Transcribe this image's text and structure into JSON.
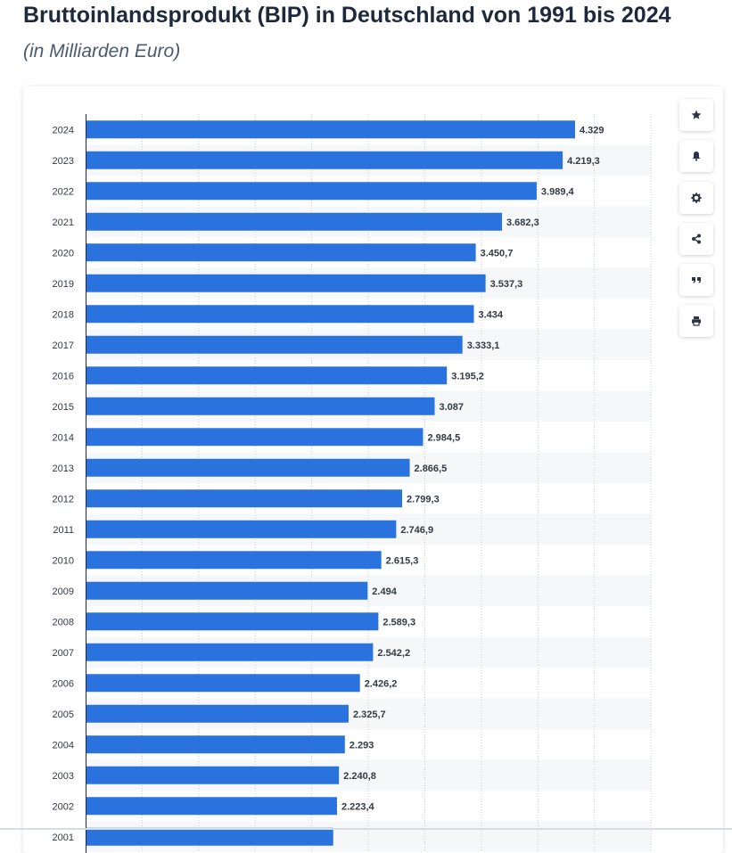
{
  "chart_data": {
    "type": "bar",
    "orientation": "horizontal",
    "title": "Bruttoinlandsprodukt (BIP) in Deutschland von 1991 bis 2024",
    "subtitle": "(in Milliarden Euro)",
    "xlabel": "",
    "ylabel": "",
    "xlim": [
      0,
      5000
    ],
    "grid": true,
    "categories": [
      "2024",
      "2023",
      "2022",
      "2021",
      "2020",
      "2019",
      "2018",
      "2017",
      "2016",
      "2015",
      "2014",
      "2013",
      "2012",
      "2011",
      "2010",
      "2009",
      "2008",
      "2007",
      "2006",
      "2005",
      "2004",
      "2003",
      "2002",
      "2001"
    ],
    "values": [
      4329,
      4219.3,
      3989.4,
      3682.3,
      3450.7,
      3537.3,
      3434,
      3333.1,
      3195.2,
      3087,
      2984.5,
      2866.5,
      2799.3,
      2746.9,
      2615.3,
      2494,
      2589.3,
      2542.2,
      2426.2,
      2325.7,
      2293,
      2240.8,
      2223.4,
      2190
    ],
    "value_labels": [
      "4.329",
      "4.219,3",
      "3.989,4",
      "3.682,3",
      "3.450,7",
      "3.537,3",
      "3.434",
      "3.333,1",
      "3.195,2",
      "3.087",
      "2.984,5",
      "2.866,5",
      "2.799,3",
      "2.746,9",
      "2.615,3",
      "2.494",
      "2.589,3",
      "2.542,2",
      "2.426,2",
      "2.325,7",
      "2.293",
      "2.240,8",
      "2.223,4",
      ""
    ],
    "bar_color": "#2a72dd",
    "stripe_color": "#f6f7f9",
    "grid_color": "#c9ced6",
    "axis_color": "#1e2a3c"
  },
  "toolbar": [
    {
      "name": "favorite-button",
      "icon": "star-icon"
    },
    {
      "name": "notification-button",
      "icon": "bell-icon"
    },
    {
      "name": "settings-button",
      "icon": "gear-icon"
    },
    {
      "name": "share-button",
      "icon": "share-icon"
    },
    {
      "name": "cite-button",
      "icon": "quote-icon"
    },
    {
      "name": "print-button",
      "icon": "print-icon"
    }
  ]
}
